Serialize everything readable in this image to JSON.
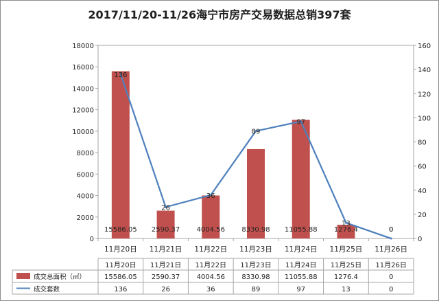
{
  "chart_data": {
    "type": "bar",
    "title": "2017/11/20-11/26海宁市房产交易数据总销397套",
    "categories": [
      "11月20日",
      "11月21日",
      "11月22日",
      "11月23日",
      "11月24日",
      "11月25日",
      "11月26日"
    ],
    "series": [
      {
        "name": "成交总面积（㎡）",
        "type": "bar",
        "axis": "left",
        "color": "#c0504d",
        "values": [
          15586.05,
          2590.37,
          4004.56,
          8330.98,
          11055.88,
          1276.4,
          0
        ],
        "labels": [
          "15586.05",
          "2590.37",
          "4004.56",
          "8330.98",
          "11055.88",
          "1276.4",
          "0"
        ]
      },
      {
        "name": "成交套数",
        "type": "line",
        "axis": "right",
        "color": "#4f81bd",
        "values": [
          136,
          26,
          36,
          89,
          97,
          13,
          0
        ],
        "labels": [
          "136",
          "26",
          "36",
          "89",
          "97",
          "13",
          "0"
        ]
      }
    ],
    "y_left": {
      "min": 0,
      "max": 18000,
      "ticks": [
        "0",
        "2000",
        "4000",
        "6000",
        "8000",
        "10000",
        "12000",
        "14000",
        "16000",
        "18000"
      ]
    },
    "y_right": {
      "min": 0,
      "max": 160,
      "ticks": [
        "0",
        "20",
        "40",
        "60",
        "80",
        "100",
        "120",
        "140",
        "160"
      ]
    },
    "grid": false,
    "legend": "data table below chart"
  }
}
